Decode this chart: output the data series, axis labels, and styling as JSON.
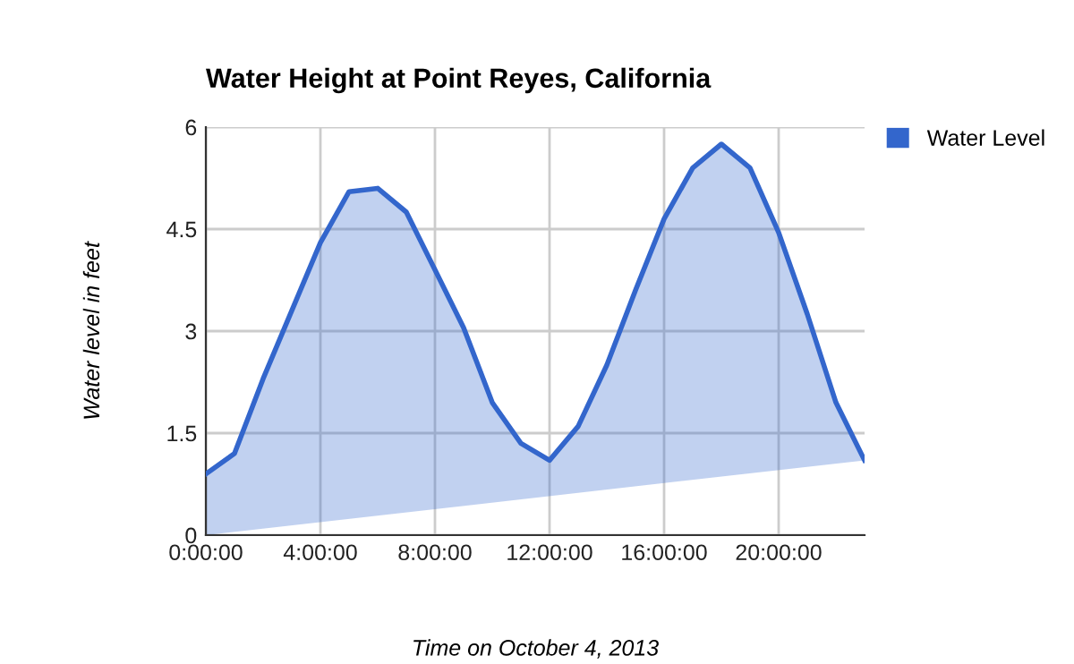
{
  "chart_data": {
    "type": "area",
    "title": "Water Height at Point Reyes, California",
    "xlabel": "Time on October 4, 2013",
    "ylabel": "Water level in feet",
    "x": [
      0,
      1,
      2,
      3,
      4,
      5,
      6,
      7,
      8,
      9,
      10,
      11,
      12,
      13,
      14,
      15,
      16,
      17,
      18,
      19,
      20,
      21,
      22,
      23
    ],
    "series": [
      {
        "name": "Water Level",
        "color": "#3366cc",
        "values": [
          0.9,
          1.2,
          2.3,
          3.3,
          4.3,
          5.05,
          5.1,
          4.75,
          3.9,
          3.05,
          1.95,
          1.35,
          1.1,
          1.6,
          2.5,
          3.6,
          4.65,
          5.4,
          5.75,
          5.4,
          4.45,
          3.25,
          1.95,
          1.1
        ]
      }
    ],
    "xlim": [
      0,
      23
    ],
    "ylim": [
      0,
      6
    ],
    "xticks": [
      {
        "value": 0,
        "label": "0:00:00"
      },
      {
        "value": 4,
        "label": "4:00:00"
      },
      {
        "value": 8,
        "label": "8:00:00"
      },
      {
        "value": 12,
        "label": "12:00:00"
      },
      {
        "value": 16,
        "label": "16:00:00"
      },
      {
        "value": 20,
        "label": "20:00:00"
      }
    ],
    "yticks": [
      0,
      1.5,
      3,
      4.5,
      6
    ],
    "grid": true,
    "legend": "right",
    "marker": "none",
    "line_style": "solid"
  }
}
